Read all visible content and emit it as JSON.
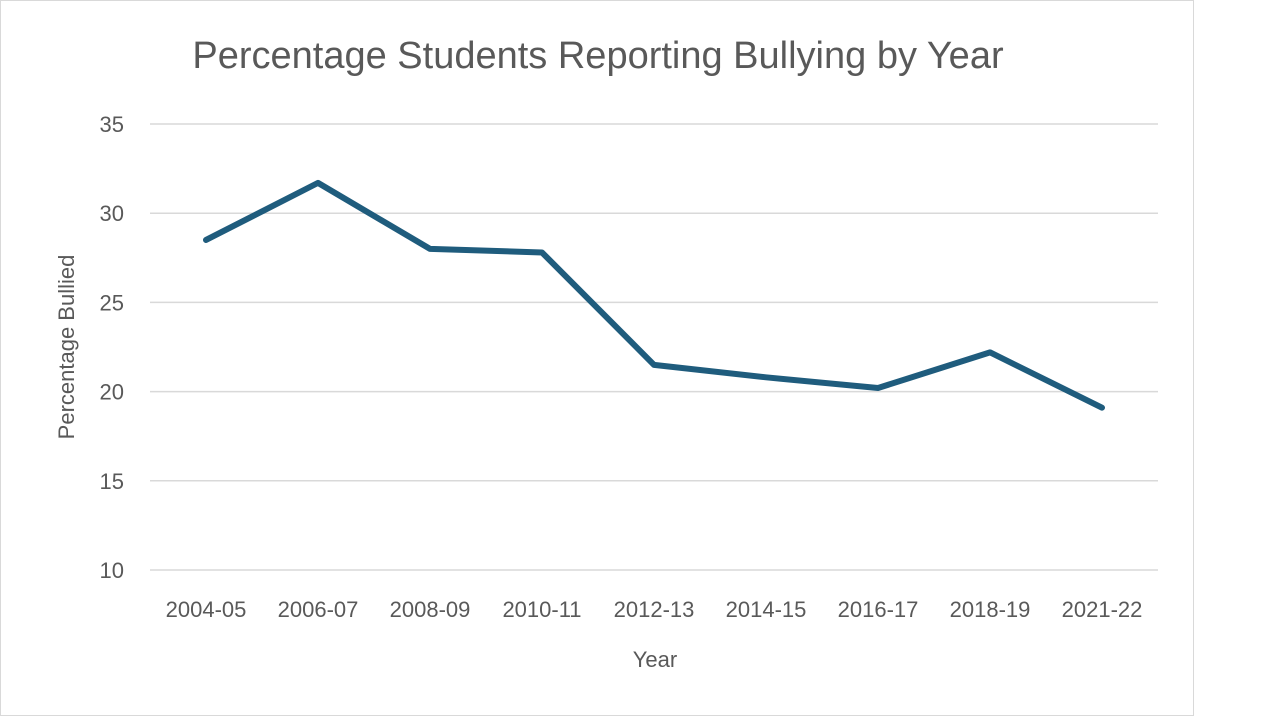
{
  "chart_data": {
    "type": "line",
    "title": "Percentage Students Reporting Bullying by Year",
    "xlabel": "Year",
    "ylabel": "Percentage Bullied",
    "categories": [
      "2004-05",
      "2006-07",
      "2008-09",
      "2010-11",
      "2012-13",
      "2014-15",
      "2016-17",
      "2018-19",
      "2021-22"
    ],
    "series": [
      {
        "name": "Percentage Bullied",
        "values": [
          28.5,
          31.7,
          28.0,
          27.8,
          21.5,
          20.8,
          20.2,
          22.2,
          19.1
        ],
        "color": "#1f5c7d"
      }
    ],
    "ylim": [
      10,
      35
    ],
    "yticks": [
      10,
      15,
      20,
      25,
      30,
      35
    ],
    "grid": true,
    "legend": "none"
  }
}
